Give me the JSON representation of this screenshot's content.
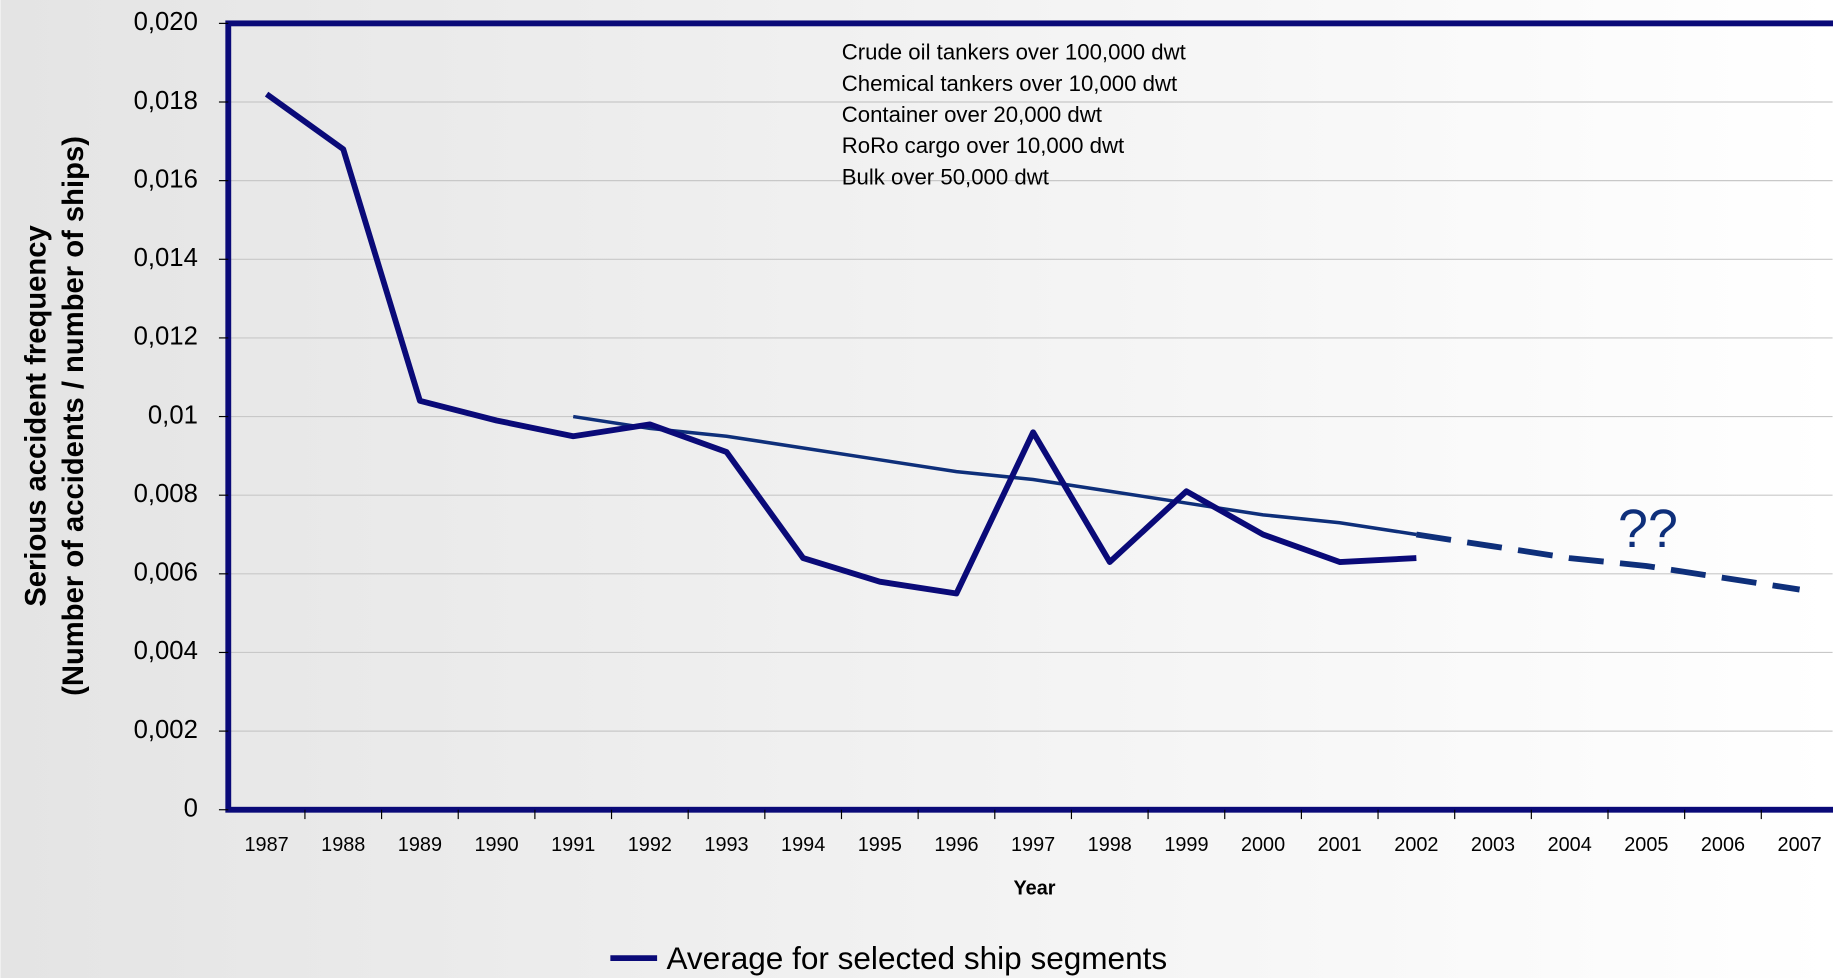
{
  "chart_data": {
    "type": "line",
    "xlabel": "Year",
    "ylabel": [
      "Serious accident frequency",
      "(Number of accidents / number of ships)"
    ],
    "categories": [
      "1987",
      "1988",
      "1989",
      "1990",
      "1991",
      "1992",
      "1993",
      "1994",
      "1995",
      "1996",
      "1997",
      "1998",
      "1999",
      "2000",
      "2001",
      "2002",
      "2003",
      "2004",
      "2005",
      "2006",
      "2007"
    ],
    "series": [
      {
        "name": "Average for selected ship segments",
        "color": "#0a0a78",
        "values": [
          0.0182,
          0.0168,
          0.0104,
          0.0099,
          0.0095,
          0.0098,
          0.0091,
          0.0064,
          0.0058,
          0.0055,
          0.0096,
          0.0063,
          0.0081,
          0.007,
          0.0063,
          0.0064,
          null,
          null,
          null,
          null,
          null
        ]
      }
    ],
    "trend": {
      "color": "#0e2f7a",
      "projection_start": "2002",
      "values": [
        null,
        null,
        null,
        null,
        0.01,
        0.0097,
        0.0095,
        0.0092,
        0.0089,
        0.0086,
        0.0084,
        0.0081,
        0.0078,
        0.0075,
        0.0073,
        0.007,
        0.0067,
        0.0064,
        0.0062,
        0.0059,
        0.0056
      ]
    },
    "annotations": [
      "Crude oil tankers over 100,000 dwt",
      "Chemical tankers over 10,000 dwt",
      "Container over 20,000 dwt",
      "RoRo cargo over 10,000 dwt",
      "Bulk over 50,000 dwt"
    ],
    "projection_label": "??",
    "ylim": [
      0,
      0.02
    ],
    "yticks": [
      0,
      {
        "value": 0.002,
        "label": "0,002"
      },
      {
        "value": 0.004,
        "label": "0,004"
      },
      {
        "value": 0.006,
        "label": "0,006"
      },
      {
        "value": 0.008,
        "label": "0,008"
      },
      {
        "value": 0.01,
        "label": "0,01"
      },
      {
        "value": 0.012,
        "label": "0,012"
      },
      {
        "value": 0.014,
        "label": "0,014"
      },
      {
        "value": 0.016,
        "label": "0,016"
      },
      {
        "value": 0.018,
        "label": "0,018"
      },
      {
        "value": 0.02,
        "label": "0,020"
      }
    ],
    "grid": true,
    "legend": "bottom"
  }
}
